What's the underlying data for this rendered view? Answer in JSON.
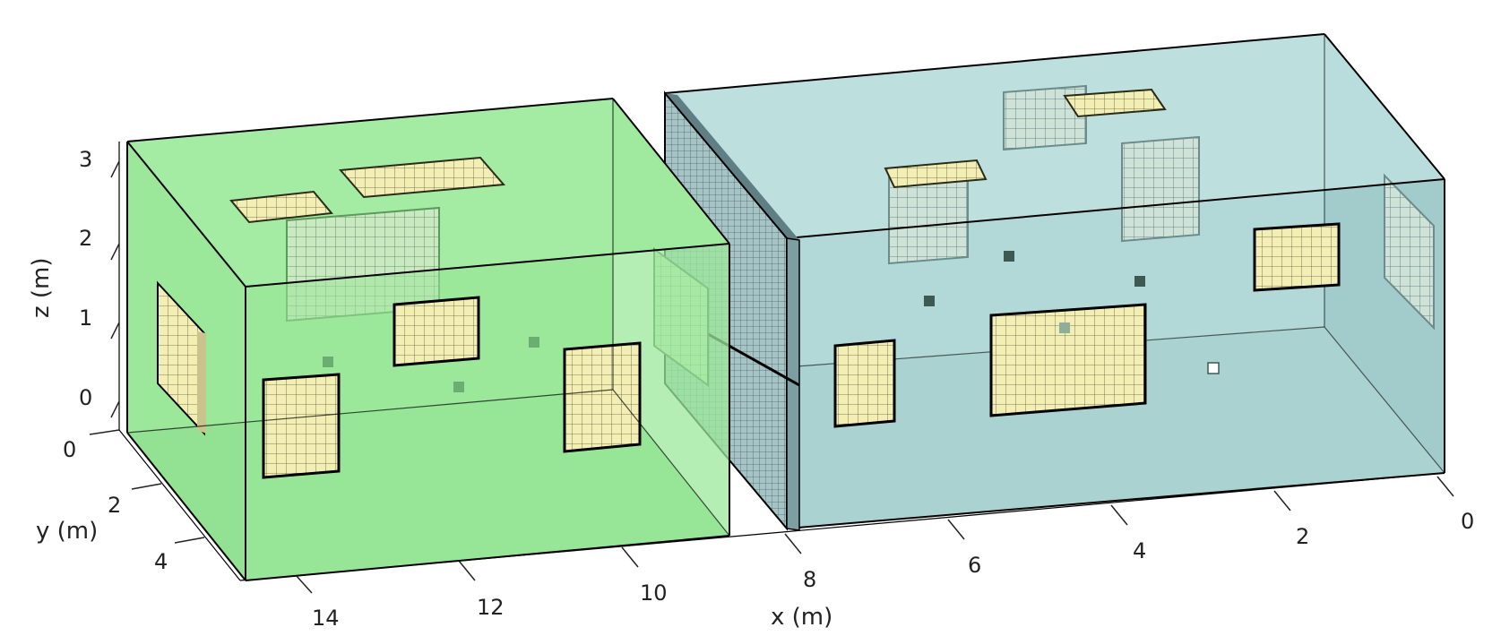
{
  "axes": {
    "x": {
      "label": "x (m)",
      "ticks": [
        "14",
        "12",
        "10",
        "8",
        "6",
        "4",
        "2",
        "0"
      ]
    },
    "y": {
      "label": "y (m)",
      "ticks": [
        "0",
        "2",
        "4"
      ]
    },
    "z": {
      "label": "z (m)",
      "ticks": [
        "3",
        "2",
        "1",
        "0"
      ]
    }
  },
  "colors": {
    "room_left": "#9be89b",
    "room_right": "#b2d9d8",
    "panel_fill": "#f3efb4",
    "grid_line": "#5a5a3a",
    "wall_grid": "#6b8a8f",
    "sensor": "#3d5a52"
  }
}
